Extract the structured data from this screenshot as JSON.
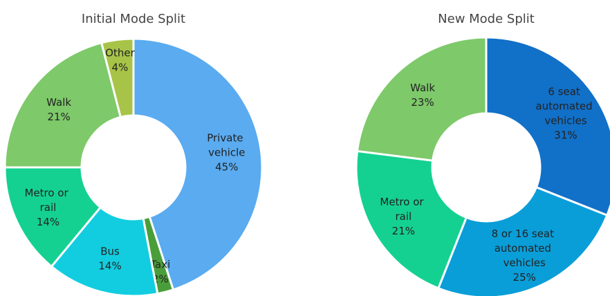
{
  "chart_data": [
    {
      "type": "donut",
      "title": "Initial Mode Split",
      "categories": [
        "Private vehicle",
        "Taxi",
        "Bus",
        "Metro or rail",
        "Walk",
        "Other"
      ],
      "values": [
        45,
        2,
        14,
        14,
        21,
        4
      ],
      "value_labels": [
        "45%",
        "2%",
        "14%",
        "14%",
        "21%",
        "4%"
      ],
      "colors": [
        "#5aabf0",
        "#4a9e3a",
        "#12cde0",
        "#14d191",
        "#7ec96a",
        "#a8c448"
      ]
    },
    {
      "type": "donut",
      "title": "New Mode Split",
      "categories": [
        "6 seat automated vehicles",
        "8 or 16 seat automated vehicles",
        "Metro or rail",
        "Walk"
      ],
      "values": [
        31,
        25,
        21,
        23
      ],
      "value_labels": [
        "31%",
        "25%",
        "21%",
        "23%"
      ],
      "colors": [
        "#1170c8",
        "#0a9ed8",
        "#14d191",
        "#7ec96a"
      ]
    }
  ]
}
